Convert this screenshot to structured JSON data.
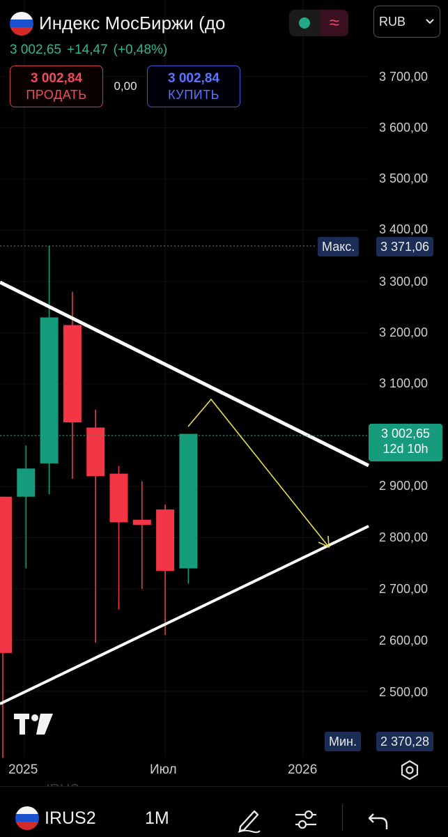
{
  "header": {
    "title": "Индекс МосБиржи (до",
    "last_price": "3 002,65",
    "change_abs": "+14,47",
    "change_pct": "(+0,48%)",
    "currency": "RUB",
    "status_wave_glyph": "≈"
  },
  "trade": {
    "sell_price": "3 002,84",
    "sell_label": "ПРОДАТЬ",
    "spread": "0,00",
    "buy_price": "3 002,84",
    "buy_label": "КУПИТЬ"
  },
  "price_axis": {
    "labels": [
      "3 700,00",
      "3 600,00",
      "3 500,00",
      "3 400,00",
      "3 300,00",
      "3 200,00",
      "3 100,00",
      "2 900,00",
      "2 800,00",
      "2 700,00",
      "2 600,00",
      "2 500,00"
    ],
    "max_label": "Макс.",
    "max_value": "3 371,06",
    "min_label": "Мин.",
    "min_value": "2 370,28",
    "current_value": "3 002,65",
    "countdown": "12d 10h"
  },
  "time_axis": {
    "labels": [
      "2025",
      "Июл",
      "2026"
    ]
  },
  "chart_data": {
    "type": "candlestick",
    "timeframe": "1M",
    "ylim": [
      2370,
      3780
    ],
    "candles": [
      {
        "o": 2880,
        "h": 2880,
        "l": 2370,
        "c": 2575
      },
      {
        "o": 2880,
        "h": 2980,
        "l": 2740,
        "c": 2935
      },
      {
        "o": 2945,
        "h": 3370,
        "l": 2885,
        "c": 3230
      },
      {
        "o": 3215,
        "h": 3280,
        "l": 2915,
        "c": 3025
      },
      {
        "o": 3015,
        "h": 3050,
        "l": 2595,
        "c": 2920
      },
      {
        "o": 2925,
        "h": 2940,
        "l": 2660,
        "c": 2830
      },
      {
        "o": 2835,
        "h": 2910,
        "l": 2700,
        "c": 2825
      },
      {
        "o": 2855,
        "h": 2865,
        "l": 2610,
        "c": 2735
      },
      {
        "o": 2740,
        "h": 3000,
        "l": 2710,
        "c": 3002.65
      }
    ],
    "up_color": "#169b7c",
    "down_color": "#f23645",
    "drawing_color": "#ffffff",
    "projection_color": "#e6e04a"
  },
  "bottom_bar": {
    "ghost_text": "IRUS",
    "symbol": "IRUS2",
    "interval": "1M"
  },
  "icons": {
    "flag": "russia-flag-icon",
    "logo": "tradingview-logo-icon",
    "settings": "settings-icon",
    "draw": "pen-icon",
    "indicators": "sliders-icon",
    "undo": "undo-icon"
  }
}
